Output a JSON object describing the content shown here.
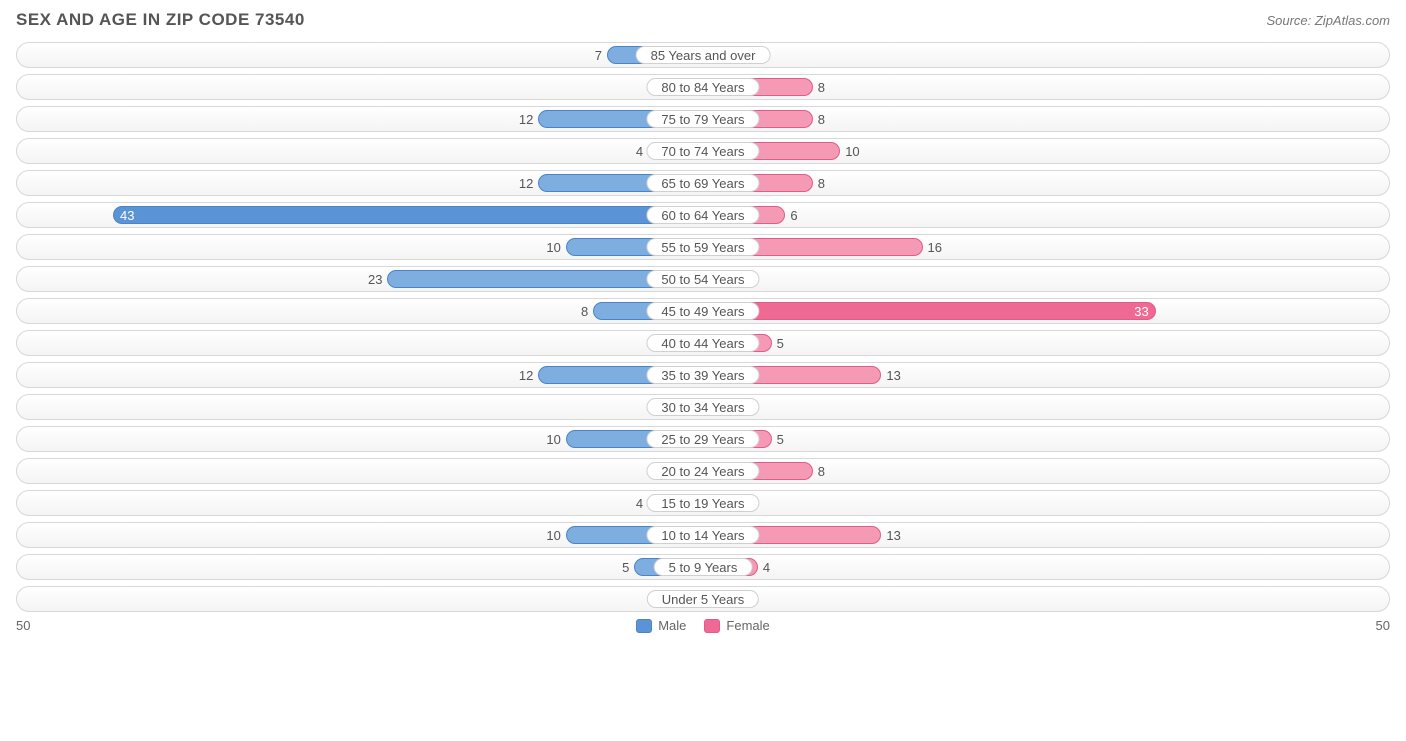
{
  "title": "SEX AND AGE IN ZIP CODE 73540",
  "source": "Source: ZipAtlas.com",
  "axis_max": 50,
  "axis_left_label": "50",
  "axis_right_label": "50",
  "min_bar_pct": 2.5,
  "inside_label_threshold": 30,
  "colors": {
    "male_fill": "#7eaee0",
    "male_fill_strong": "#5b94d6",
    "male_border": "#4b84c4",
    "female_fill": "#f49ab4",
    "female_fill_strong": "#ee6a94",
    "female_border": "#e15c87",
    "track_border": "#d8d8d8",
    "text": "#555555",
    "background": "#ffffff"
  },
  "legend": {
    "male": "Male",
    "female": "Female"
  },
  "rows": [
    {
      "category": "85 Years and over",
      "male": 7,
      "female": 0
    },
    {
      "category": "80 to 84 Years",
      "male": 1,
      "female": 8
    },
    {
      "category": "75 to 79 Years",
      "male": 12,
      "female": 8
    },
    {
      "category": "70 to 74 Years",
      "male": 4,
      "female": 10
    },
    {
      "category": "65 to 69 Years",
      "male": 12,
      "female": 8
    },
    {
      "category": "60 to 64 Years",
      "male": 43,
      "female": 6
    },
    {
      "category": "55 to 59 Years",
      "male": 10,
      "female": 16
    },
    {
      "category": "50 to 54 Years",
      "male": 23,
      "female": 3
    },
    {
      "category": "45 to 49 Years",
      "male": 8,
      "female": 33
    },
    {
      "category": "40 to 44 Years",
      "male": 3,
      "female": 5
    },
    {
      "category": "35 to 39 Years",
      "male": 12,
      "female": 13
    },
    {
      "category": "30 to 34 Years",
      "male": 2,
      "female": 1
    },
    {
      "category": "25 to 29 Years",
      "male": 10,
      "female": 5
    },
    {
      "category": "20 to 24 Years",
      "male": 0,
      "female": 8
    },
    {
      "category": "15 to 19 Years",
      "male": 4,
      "female": 1
    },
    {
      "category": "10 to 14 Years",
      "male": 10,
      "female": 13
    },
    {
      "category": "5 to 9 Years",
      "male": 5,
      "female": 4
    },
    {
      "category": "Under 5 Years",
      "male": 3,
      "female": 1
    }
  ]
}
